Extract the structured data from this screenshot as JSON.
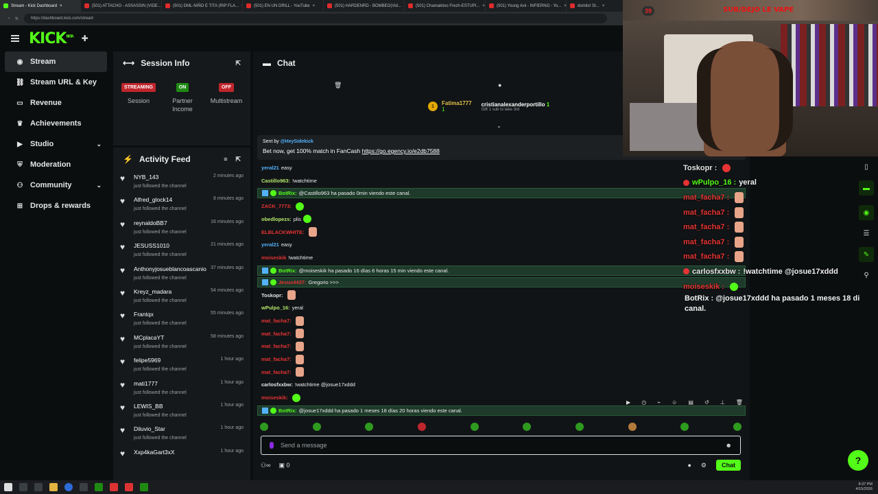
{
  "browser": {
    "tabs": [
      {
        "title": "Stream - Kick Dashboard",
        "active": true
      },
      {
        "title": "(501) ATTACHO - ASSASSIN (VIDE..."
      },
      {
        "title": "(501) DML-NIÑO E TITA (RIP FLA..."
      },
      {
        "title": "(501) EN UN DRILL - YouTube"
      },
      {
        "title": "(501) HARDENRD - BOMBEO(Vid..."
      },
      {
        "title": "(501) Chamakitoo Frezh-ESTUPI..."
      },
      {
        "title": "(501) Young Avii - INFIERNO - Yo..."
      },
      {
        "title": "domilo! St..."
      }
    ],
    "url": "https://dashboard.kick.com/stream"
  },
  "app": {
    "logo": "KICK",
    "logo_sup": "BETA"
  },
  "sidebar": {
    "items": [
      {
        "label": "Stream",
        "icon": "broadcast-icon",
        "active": true
      },
      {
        "label": "Stream URL & Key",
        "icon": "link-icon"
      },
      {
        "label": "Revenue",
        "icon": "card-icon"
      },
      {
        "label": "Achievements",
        "icon": "trophy-icon"
      },
      {
        "label": "Studio",
        "icon": "video-icon",
        "expand": true
      },
      {
        "label": "Moderation",
        "icon": "shield-icon"
      },
      {
        "label": "Community",
        "icon": "users-icon",
        "expand": true
      },
      {
        "label": "Drops & rewards",
        "icon": "gift-icon"
      }
    ]
  },
  "session": {
    "title": "Session Info",
    "stats": [
      {
        "badge": "STREAMING",
        "color": "#c0262d",
        "label": "Session"
      },
      {
        "badge": "ON",
        "color": "#1f8a12",
        "label": "Partner Income"
      },
      {
        "badge": "OFF",
        "color": "#c0262d",
        "label": "Multistream"
      }
    ]
  },
  "activity": {
    "title": "Activity Feed",
    "items": [
      {
        "name": "NYB_143",
        "sub": "just followed the channel",
        "ago": "2 minutes ago"
      },
      {
        "name": "Alfred_glock14",
        "sub": "just followed the channel",
        "ago": "8 minutes ago"
      },
      {
        "name": "reynaldoBB7",
        "sub": "just followed the channel",
        "ago": "16 minutes ago"
      },
      {
        "name": "JESUSS1010",
        "sub": "just followed the channel",
        "ago": "21 minutes ago"
      },
      {
        "name": "Anthonyjosueblancoascanio",
        "sub": "just followed the channel",
        "ago": "37 minutes ago"
      },
      {
        "name": "Kreyz_madara",
        "sub": "just followed the channel",
        "ago": "54 minutes ago"
      },
      {
        "name": "Frantqx",
        "sub": "just followed the channel",
        "ago": "55 minutes ago"
      },
      {
        "name": "MCplacaYT",
        "sub": "just followed the channel",
        "ago": "58 minutes ago"
      },
      {
        "name": "felipe5969",
        "sub": "just followed the channel",
        "ago": "1 hour ago"
      },
      {
        "name": "mati1777",
        "sub": "just followed the channel",
        "ago": "1 hour ago"
      },
      {
        "name": "LEWIS_BB",
        "sub": "just followed the channel",
        "ago": "1 hour ago"
      },
      {
        "name": "Diluvio_Star",
        "sub": "just followed the channel",
        "ago": "1 hour ago"
      },
      {
        "name": "Xxp4kaGart3xX",
        "sub": "",
        "ago": "1 hour ago"
      }
    ]
  },
  "chat": {
    "title": "Chat",
    "gifter": {
      "name": "Fatima1777",
      "count": "1",
      "recipient": "cristianalexanderportillo",
      "recipient_count": "1",
      "sub": "Gift 1 sub to take 3rd"
    },
    "ad": {
      "sent_by": "Sent by",
      "sender": "@HeySidekick",
      "text": "Bet now, get 100% match in FanCash",
      "link": "https://go.egency.io/e2db7588"
    },
    "messages": [
      {
        "user": "yeral21",
        "text": "easy",
        "color": "#53b1fc"
      },
      {
        "user": "Castillo963:",
        "text": "!watchtime",
        "color": "#b3e86b"
      },
      {
        "user": "BotRix:",
        "text": "@Castillo963 ha pasado 0min viendo este canal.",
        "color": "#53fc18",
        "bot": true
      },
      {
        "user": "ZACK_7773:",
        "text": "",
        "color": "#e63333",
        "emote": "emo"
      },
      {
        "user": "obedlopezs:",
        "text": "plis",
        "color": "#b3e86b",
        "emote": "emo"
      },
      {
        "user": "ELBLACKWHITE:",
        "text": "",
        "color": "#e63333",
        "emote": "hand"
      },
      {
        "user": "yeral21",
        "text": "easy",
        "color": "#53b1fc"
      },
      {
        "user": "moiseskik",
        "text": "!watchtime",
        "color": "#e63333"
      },
      {
        "user": "BotRix:",
        "text": "@moiseskik ha pasado 16 días 6 horas 15 min viendo este canal.",
        "color": "#53fc18",
        "bot": true
      },
      {
        "user": "Jesus4437:",
        "text": "Gregorio >>>",
        "color": "#e63333",
        "bot": true
      },
      {
        "user": "Toskopr:",
        "text": "",
        "color": "#e6e6e6",
        "emote": "hand"
      },
      {
        "user": "wPulpo_16:",
        "text": "yeral",
        "color": "#b3e86b"
      },
      {
        "user": "mat_facha7:",
        "text": "",
        "color": "#e63333",
        "emote": "hand"
      },
      {
        "user": "mat_facha7:",
        "text": "",
        "color": "#e63333",
        "emote": "hand"
      },
      {
        "user": "mat_facha7:",
        "text": "",
        "color": "#e63333",
        "emote": "hand"
      },
      {
        "user": "mat_facha7:",
        "text": "",
        "color": "#e63333",
        "emote": "hand"
      },
      {
        "user": "mat_facha7:",
        "text": "",
        "color": "#e63333",
        "emote": "hand"
      },
      {
        "user": "carlosfxxbw:",
        "text": "!watchtime @josue17xddd",
        "color": "#e6e6e6"
      },
      {
        "user": "moiseskik:",
        "text": "",
        "color": "#e63333",
        "emote": "emo"
      },
      {
        "user": "BotRix:",
        "text": "@josue17xddd ha pasado 1 meses 18 días 20 horas viendo este canal.",
        "color": "#53fc18",
        "bot": true
      }
    ],
    "input_placeholder": "Send a message",
    "points": "0",
    "send_label": "Chat"
  },
  "webcam": {
    "badge": "39",
    "caption": "SUB/DEJO LE VAPE"
  },
  "overlay": {
    "messages": [
      {
        "user": "Toskopr :",
        "text": "",
        "color": "w"
      },
      {
        "user": "wPulpo_16 :",
        "text": "yeral",
        "color": "g"
      },
      {
        "user": "mat_facha7 :",
        "text": "",
        "color": "r"
      },
      {
        "user": "mat_facha7 :",
        "text": "",
        "color": "r"
      },
      {
        "user": "mat_facha7 :",
        "text": "",
        "color": "r"
      },
      {
        "user": "mat_facha7 :",
        "text": "",
        "color": "r"
      },
      {
        "user": "mat_facha7 :",
        "text": "",
        "color": "r"
      },
      {
        "user": "carlosfxxbw :",
        "text": "!watchtime @josue17xddd",
        "color": "w"
      },
      {
        "user": "moiseskik :",
        "text": "",
        "color": "r"
      }
    ],
    "bot_line": "BotRix : @josue17xddd ha pasado 1 meses 18 di canal."
  },
  "taskbar": {
    "time": "8:37 PM",
    "date": "4/15/2026"
  }
}
